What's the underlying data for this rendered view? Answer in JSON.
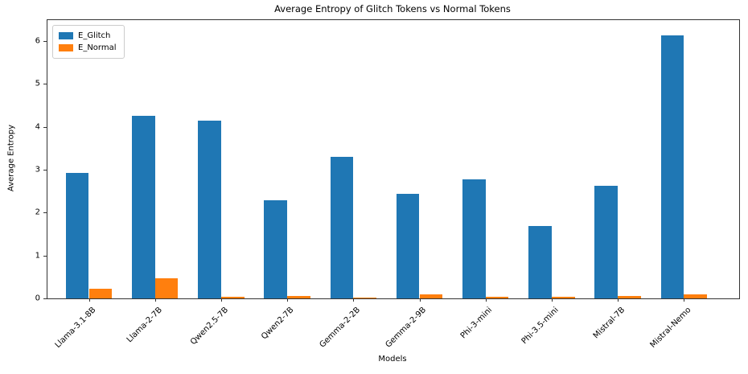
{
  "chart_data": {
    "type": "bar",
    "title": "Average Entropy of Glitch Tokens vs Normal Tokens",
    "xlabel": "Models",
    "ylabel": "Average Entropy",
    "categories": [
      "Llama-3.1-8B",
      "Llama-2-7B",
      "Qwen2.5-7B",
      "Qwen2-7B",
      "Gemma-2-2B",
      "Gemma-2-9B",
      "Phi-3-mini",
      "Phi-3.5-mini",
      "Mistral-7B",
      "Mistral-Nemo"
    ],
    "series": [
      {
        "name": "E_Glitch",
        "color": "#1f77b4",
        "values": [
          2.93,
          4.26,
          4.15,
          2.28,
          3.3,
          2.44,
          2.78,
          1.69,
          2.63,
          6.13
        ]
      },
      {
        "name": "E_Normal",
        "color": "#ff7f0e",
        "values": [
          0.22,
          0.46,
          0.04,
          0.05,
          0.02,
          0.1,
          0.03,
          0.03,
          0.06,
          0.1
        ]
      }
    ],
    "yticks": [
      0,
      1,
      2,
      3,
      4,
      5,
      6
    ],
    "ylim": [
      0,
      6.49
    ],
    "grid": false,
    "legend_position": "upper-left"
  }
}
